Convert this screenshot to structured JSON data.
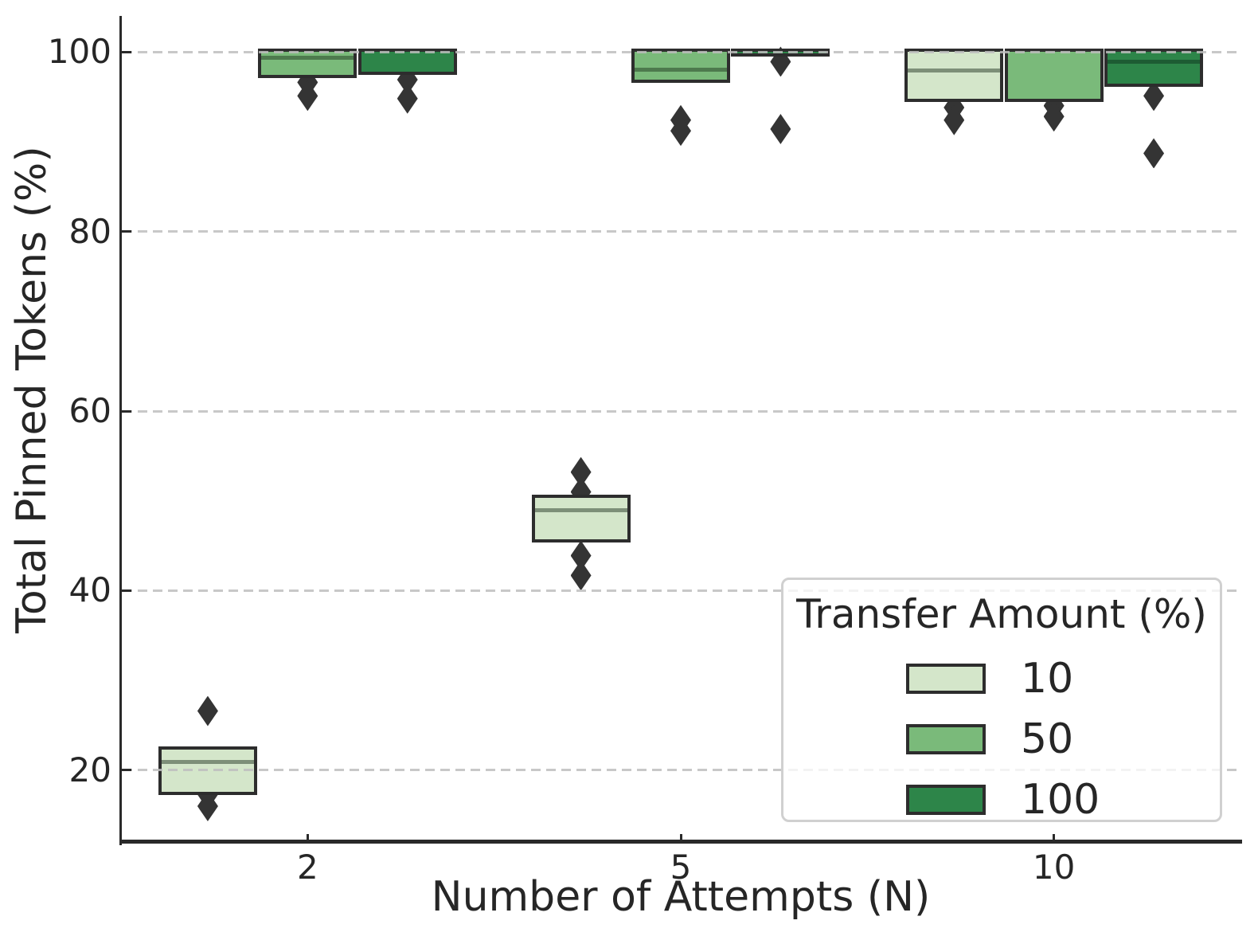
{
  "chart_data": {
    "type": "box",
    "title": "",
    "xlabel": "Number of Attempts (N)",
    "ylabel": "Total Pinned Tokens (%)",
    "categories": [
      "2",
      "5",
      "10"
    ],
    "yticks": [
      20,
      40,
      60,
      80,
      100
    ],
    "ylim": [
      12.1,
      104.0
    ],
    "grid": "dashed horizontal",
    "legend": {
      "title": "Transfer Amount (%)",
      "position": "lower right",
      "entries": [
        {
          "label": "10",
          "color": "#d4e6ca"
        },
        {
          "label": "50",
          "color": "#7aba7a"
        },
        {
          "label": "100",
          "color": "#2d8549"
        }
      ]
    },
    "series": [
      {
        "name": "10",
        "color": "#d4e6ca",
        "median_color": "#7d8f78",
        "boxes": [
          {
            "category": "2",
            "q1": 17.6,
            "median": 20.9,
            "q3": 22.3,
            "outliers": [
              26.6,
              17.3,
              16.0
            ]
          },
          {
            "category": "5",
            "q1": 45.7,
            "median": 49.0,
            "q3": 50.3,
            "outliers": [
              53.2,
              51.0,
              43.9,
              41.7
            ]
          },
          {
            "category": "10",
            "q1": 94.8,
            "median": 97.9,
            "q3": 100.0,
            "outliers": [
              93.8,
              92.4
            ]
          }
        ]
      },
      {
        "name": "50",
        "color": "#7aba7a",
        "median_color": "#4d7a4d",
        "boxes": [
          {
            "category": "2",
            "q1": 97.4,
            "median": 99.3,
            "q3": 100.0,
            "outliers": [
              96.6,
              95.1
            ]
          },
          {
            "category": "5",
            "q1": 96.9,
            "median": 98.0,
            "q3": 100.0,
            "outliers": [
              92.4,
              91.2
            ]
          },
          {
            "category": "10",
            "q1": 94.8,
            "median": 100.0,
            "q3": 100.0,
            "outliers": [
              94.0,
              92.8
            ]
          }
        ]
      },
      {
        "name": "100",
        "color": "#2d8549",
        "median_color": "#1d5c33",
        "boxes": [
          {
            "category": "2",
            "q1": 97.8,
            "median": 100.0,
            "q3": 100.0,
            "outliers": [
              96.9,
              94.8
            ]
          },
          {
            "category": "5",
            "q1": 99.8,
            "median": 100.0,
            "q3": 100.0,
            "outliers": [
              98.9,
              91.4
            ]
          },
          {
            "category": "10",
            "q1": 96.5,
            "median": 98.9,
            "q3": 100.0,
            "outliers": [
              95.1,
              88.7
            ]
          }
        ]
      }
    ]
  }
}
